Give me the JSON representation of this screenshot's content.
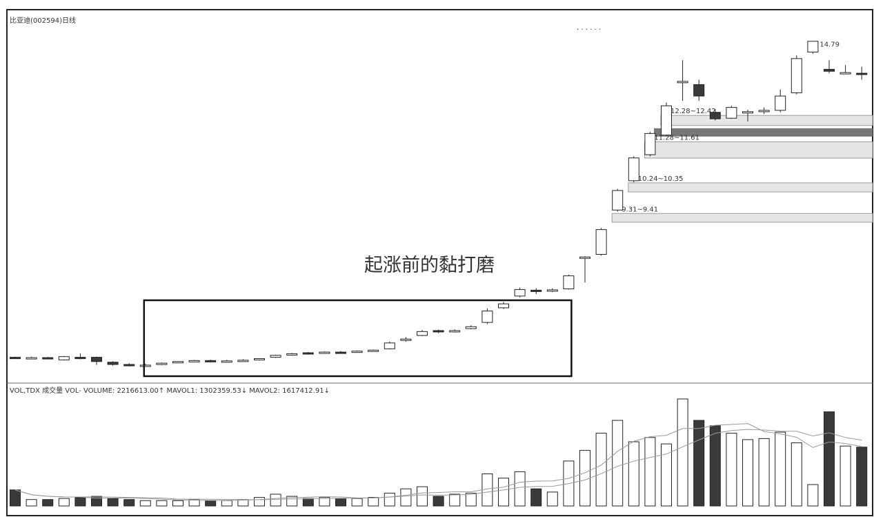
{
  "window": {
    "title": "比亚迪(002594)日线",
    "toolbar_marks": "· · · · · ·"
  },
  "volume_header": {
    "text": "VOL,TDX 成交量 VOL- VOLUME: 2216613.00↑ MAVOL1: 1302359.53↓ MAVOL2: 1617412.91↓"
  },
  "annotation": {
    "text": "起涨前的黏打磨"
  },
  "colors": {
    "border": "#222222",
    "candle_up": "#ffffff",
    "candle_down": "#3a3a3a",
    "zone_fill": "#e6e6e6",
    "zone_dark": "#777777",
    "ma_line": "#999999"
  },
  "chart_data": {
    "type": "candlestick",
    "max_label": "14.79",
    "price_range": [
      4.5,
      15.2
    ],
    "candles": [
      {
        "o": 5.08,
        "c": 5.06,
        "h": 5.1,
        "l": 5.03
      },
      {
        "o": 5.06,
        "c": 5.07,
        "h": 5.1,
        "l": 5.03
      },
      {
        "o": 5.07,
        "c": 5.04,
        "h": 5.09,
        "l": 5.02
      },
      {
        "o": 5.0,
        "c": 5.1,
        "h": 5.12,
        "l": 4.98
      },
      {
        "o": 5.08,
        "c": 5.06,
        "h": 5.2,
        "l": 5.02
      },
      {
        "o": 5.08,
        "c": 4.95,
        "h": 5.1,
        "l": 4.85
      },
      {
        "o": 4.93,
        "c": 4.86,
        "h": 4.96,
        "l": 4.82
      },
      {
        "o": 4.86,
        "c": 4.84,
        "h": 4.9,
        "l": 4.8
      },
      {
        "o": 4.82,
        "c": 4.84,
        "h": 4.88,
        "l": 4.8
      },
      {
        "o": 4.86,
        "c": 4.9,
        "h": 4.92,
        "l": 4.84
      },
      {
        "o": 4.93,
        "c": 4.95,
        "h": 4.97,
        "l": 4.91
      },
      {
        "o": 4.96,
        "c": 4.98,
        "h": 5.0,
        "l": 4.94
      },
      {
        "o": 4.98,
        "c": 4.96,
        "h": 5.01,
        "l": 4.93
      },
      {
        "o": 4.96,
        "c": 4.97,
        "h": 5.0,
        "l": 4.94
      },
      {
        "o": 4.97,
        "c": 4.99,
        "h": 5.02,
        "l": 4.95
      },
      {
        "o": 5.0,
        "c": 5.04,
        "h": 5.06,
        "l": 4.98
      },
      {
        "o": 5.08,
        "c": 5.14,
        "h": 5.16,
        "l": 5.06
      },
      {
        "o": 5.15,
        "c": 5.19,
        "h": 5.21,
        "l": 5.13
      },
      {
        "o": 5.22,
        "c": 5.18,
        "h": 5.24,
        "l": 5.16
      },
      {
        "o": 5.22,
        "c": 5.24,
        "h": 5.26,
        "l": 5.2
      },
      {
        "o": 5.24,
        "c": 5.23,
        "h": 5.27,
        "l": 5.21
      },
      {
        "o": 5.24,
        "c": 5.27,
        "h": 5.29,
        "l": 5.22
      },
      {
        "o": 5.28,
        "c": 5.3,
        "h": 5.32,
        "l": 5.26
      },
      {
        "o": 5.34,
        "c": 5.52,
        "h": 5.56,
        "l": 5.32
      },
      {
        "o": 5.6,
        "c": 5.64,
        "h": 5.7,
        "l": 5.56
      },
      {
        "o": 5.75,
        "c": 5.87,
        "h": 5.92,
        "l": 5.73
      },
      {
        "o": 5.9,
        "c": 5.86,
        "h": 5.93,
        "l": 5.82
      },
      {
        "o": 5.88,
        "c": 5.9,
        "h": 5.94,
        "l": 5.84
      },
      {
        "o": 5.96,
        "c": 6.02,
        "h": 6.06,
        "l": 5.94
      },
      {
        "o": 6.15,
        "c": 6.5,
        "h": 6.58,
        "l": 6.1
      },
      {
        "o": 6.6,
        "c": 6.72,
        "h": 6.78,
        "l": 6.56
      },
      {
        "o": 6.96,
        "c": 7.16,
        "h": 7.22,
        "l": 6.92
      },
      {
        "o": 7.14,
        "c": 7.1,
        "h": 7.2,
        "l": 7.02
      },
      {
        "o": 7.12,
        "c": 7.15,
        "h": 7.2,
        "l": 7.08
      },
      {
        "o": 7.18,
        "c": 7.58,
        "h": 7.62,
        "l": 7.16
      },
      {
        "o": 8.12,
        "c": 8.16,
        "h": 8.18,
        "l": 7.38
      },
      {
        "o": 8.24,
        "c": 9.0,
        "h": 9.05,
        "l": 8.2
      },
      {
        "o": 9.6,
        "c": 10.2,
        "h": 10.25,
        "l": 9.55
      },
      {
        "o": 10.5,
        "c": 11.2,
        "h": 11.25,
        "l": 10.45
      },
      {
        "o": 11.3,
        "c": 11.95,
        "h": 12.0,
        "l": 11.25
      },
      {
        "o": 11.9,
        "c": 12.8,
        "h": 12.9,
        "l": 11.88
      },
      {
        "o": 13.55,
        "c": 13.55,
        "h": 14.2,
        "l": 12.95
      },
      {
        "o": 13.45,
        "c": 13.1,
        "h": 13.6,
        "l": 12.95
      },
      {
        "o": 12.6,
        "c": 12.4,
        "h": 12.7,
        "l": 12.35
      },
      {
        "o": 12.42,
        "c": 12.75,
        "h": 12.8,
        "l": 12.4
      },
      {
        "o": 12.6,
        "c": 12.62,
        "h": 12.68,
        "l": 12.32
      },
      {
        "o": 12.62,
        "c": 12.66,
        "h": 12.75,
        "l": 12.55
      },
      {
        "o": 12.66,
        "c": 13.1,
        "h": 13.3,
        "l": 12.6
      },
      {
        "o": 13.2,
        "c": 14.25,
        "h": 14.35,
        "l": 13.15
      },
      {
        "o": 14.45,
        "c": 14.78,
        "h": 14.79,
        "l": 14.4
      },
      {
        "o": 13.92,
        "c": 13.86,
        "h": 14.2,
        "l": 13.8
      },
      {
        "o": 13.8,
        "c": 13.82,
        "h": 14.05,
        "l": 13.78
      },
      {
        "o": 13.8,
        "c": 13.78,
        "h": 14.0,
        "l": 13.6
      }
    ],
    "volumes": [
      0.15,
      0.06,
      0.06,
      0.07,
      0.08,
      0.09,
      0.07,
      0.06,
      0.05,
      0.05,
      0.05,
      0.06,
      0.05,
      0.05,
      0.06,
      0.08,
      0.11,
      0.09,
      0.07,
      0.08,
      0.07,
      0.07,
      0.08,
      0.12,
      0.16,
      0.18,
      0.09,
      0.11,
      0.12,
      0.3,
      0.26,
      0.32,
      0.16,
      0.13,
      0.42,
      0.52,
      0.68,
      0.8,
      0.6,
      0.64,
      0.58,
      1.0,
      0.8,
      0.75,
      0.68,
      0.62,
      0.63,
      0.69,
      0.59,
      0.2,
      0.88,
      0.56,
      0.55
    ],
    "price_zones": [
      {
        "label": "12.28~12.42",
        "low": 12.28,
        "high": 12.42
      },
      {
        "label": "11.28~11.61",
        "low": 11.28,
        "high": 11.61
      },
      {
        "label": "10.24~10.35",
        "low": 10.24,
        "high": 10.35
      },
      {
        "label": "9.31~9.41",
        "low": 9.31,
        "high": 9.41
      }
    ],
    "highlight_range": [
      8,
      34
    ]
  }
}
